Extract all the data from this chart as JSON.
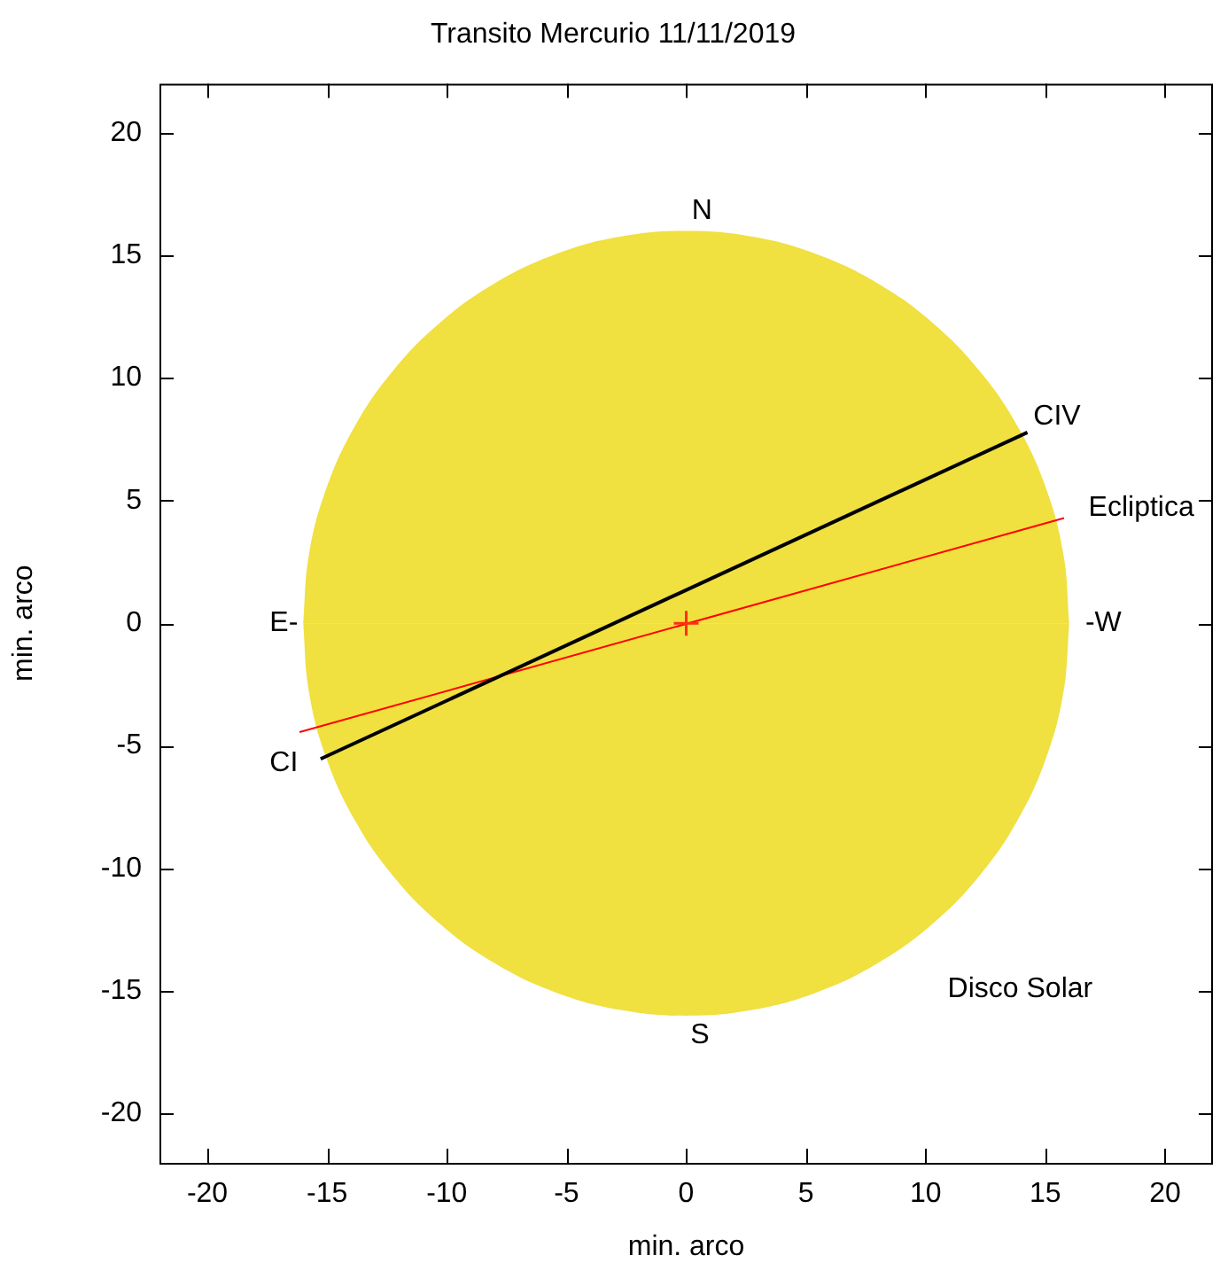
{
  "chart_data": {
    "type": "line",
    "title": "Transito Mercurio 11/11/2019",
    "xlabel": "min. arco",
    "ylabel": "min. arco",
    "xlim": [
      -22,
      22
    ],
    "ylim": [
      -22,
      22
    ],
    "xticks": [
      -20,
      -15,
      -10,
      -5,
      0,
      5,
      10,
      15,
      20
    ],
    "yticks": [
      -20,
      -15,
      -10,
      -5,
      0,
      5,
      10,
      15,
      20
    ],
    "grid": false,
    "legend": false,
    "marker": "none",
    "series": [
      {
        "type": "area",
        "color": "#f0e040",
        "x": [
          16,
          15.76,
          15.04,
          13.86,
          12.26,
          10.28,
          8,
          5.47,
          2.78,
          0,
          -2.78,
          -5.47,
          -8,
          -10.28,
          -12.26,
          -13.86,
          -15.04,
          -15.76,
          -16
        ],
        "values": [
          0,
          2.78,
          5.47,
          8,
          10.28,
          12.26,
          13.86,
          15.04,
          15.76,
          16,
          15.76,
          15.04,
          13.86,
          12.26,
          10.28,
          8,
          5.47,
          2.78,
          0
        ]
      },
      {
        "type": "area",
        "color": "#f0e040",
        "x": [
          16,
          15.76,
          15.04,
          13.86,
          12.26,
          10.28,
          8,
          5.47,
          2.78,
          0,
          -2.78,
          -5.47,
          -8,
          -10.28,
          -12.26,
          -13.86,
          -15.04,
          -15.76,
          -16
        ],
        "values": [
          0,
          -2.78,
          -5.47,
          -8,
          -10.28,
          -12.26,
          -13.86,
          -15.04,
          -15.76,
          -16,
          -15.76,
          -15.04,
          -13.86,
          -12.26,
          -10.28,
          -8,
          -5.47,
          -2.78,
          0
        ]
      },
      {
        "color": "#ff0000",
        "x": [
          -16.15,
          15.78
        ],
        "values": [
          -4.44,
          4.29
        ]
      },
      {
        "color": "#000000",
        "x": [
          -15.27,
          14.25
        ],
        "values": [
          -5.53,
          7.78
        ]
      },
      {
        "type": "scatter",
        "color": "#ff3010",
        "marker": "cross",
        "x": [
          0
        ],
        "values": [
          0
        ]
      }
    ],
    "annotations": [
      "N",
      "S",
      "E-",
      "-W",
      "CI",
      "CIV",
      "Ecliptica",
      "Disco Solar"
    ]
  }
}
